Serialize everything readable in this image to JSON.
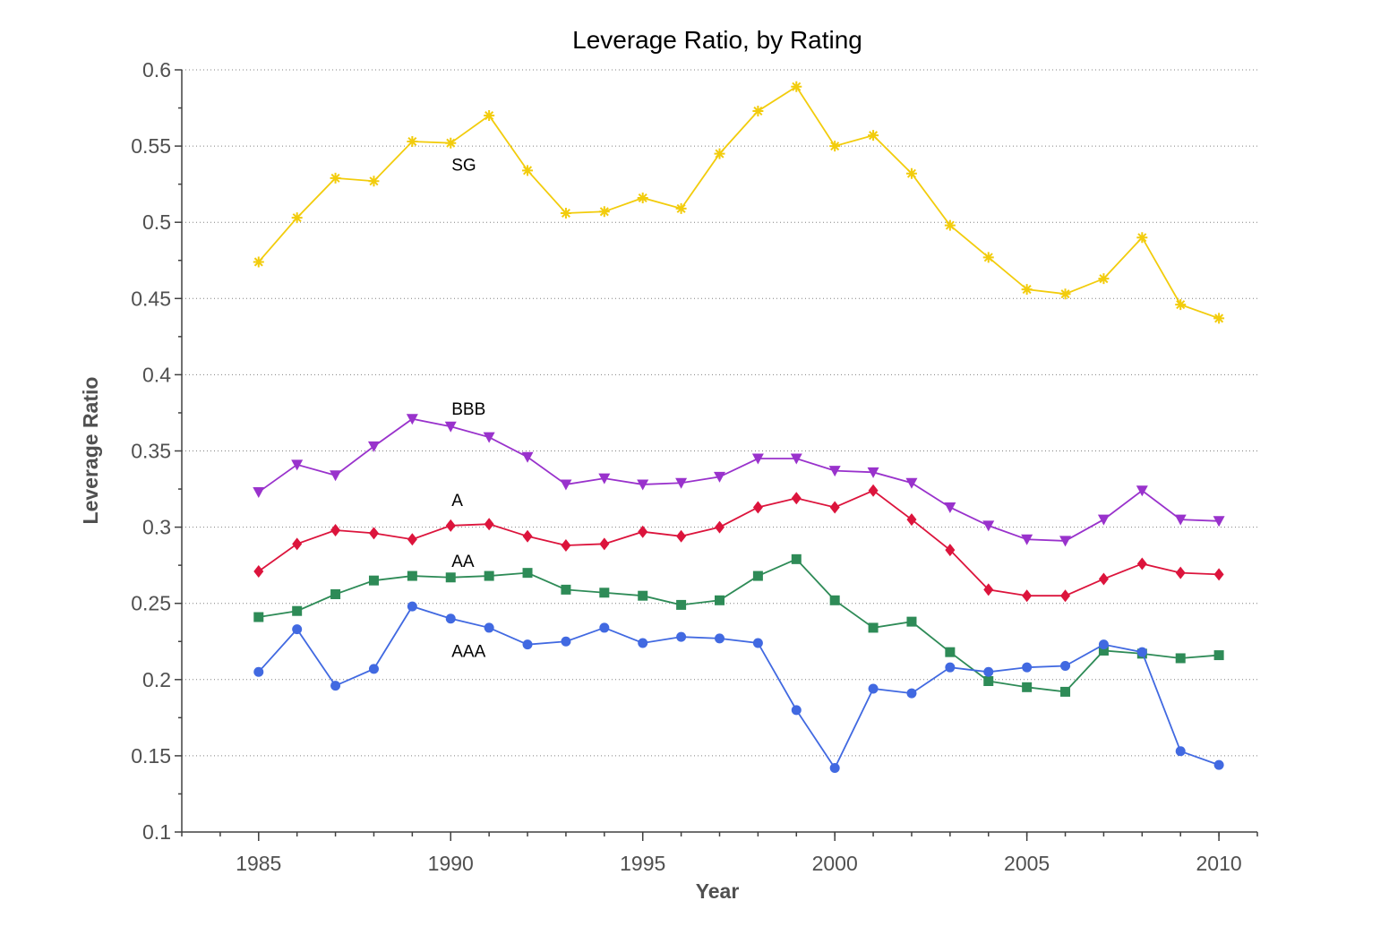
{
  "chart_data": {
    "type": "line",
    "title": "Leverage Ratio, by Rating",
    "xlabel": "Year",
    "ylabel": "Leverage Ratio",
    "xlim": [
      1983,
      2011
    ],
    "ylim": [
      0.1,
      0.6
    ],
    "xticks": [
      "1985",
      "1990",
      "1995",
      "2000",
      "2005",
      "2010"
    ],
    "yticks": [
      "0.1",
      "0.15",
      "0.2",
      "0.25",
      "0.3",
      "0.35",
      "0.4",
      "0.45",
      "0.5",
      "0.55",
      "0.6"
    ],
    "grid": "horizontal dotted",
    "legend": "none",
    "x": [
      1985,
      1986,
      1987,
      1988,
      1989,
      1990,
      1991,
      1992,
      1993,
      1994,
      1995,
      1996,
      1997,
      1998,
      1999,
      2000,
      2001,
      2002,
      2003,
      2004,
      2005,
      2006,
      2007,
      2008,
      2009,
      2010
    ],
    "series": [
      {
        "name": "SG",
        "color": "#f2cc0c",
        "marker": "asterisk",
        "label_at": [
          1990,
          0.538
        ],
        "values": [
          0.474,
          0.503,
          0.529,
          0.527,
          0.553,
          0.552,
          0.57,
          0.534,
          0.506,
          0.507,
          0.516,
          0.509,
          0.545,
          0.573,
          0.589,
          0.55,
          0.557,
          0.532,
          0.498,
          0.477,
          0.456,
          0.453,
          0.463,
          0.49,
          0.446,
          0.437
        ]
      },
      {
        "name": "BBB",
        "color": "#9932cc",
        "marker": "triangle-down",
        "label_at": [
          1990,
          0.378
        ],
        "values": [
          0.323,
          0.341,
          0.334,
          0.353,
          0.371,
          0.366,
          0.359,
          0.346,
          0.328,
          0.332,
          0.328,
          0.329,
          0.333,
          0.345,
          0.345,
          0.337,
          0.336,
          0.329,
          0.313,
          0.301,
          0.292,
          0.291,
          0.305,
          0.324,
          0.305,
          0.304
        ]
      },
      {
        "name": "A",
        "color": "#dc143c",
        "marker": "diamond",
        "label_at": [
          1990,
          0.318
        ],
        "values": [
          0.271,
          0.289,
          0.298,
          0.296,
          0.292,
          0.301,
          0.302,
          0.294,
          0.288,
          0.289,
          0.297,
          0.294,
          0.3,
          0.313,
          0.319,
          0.313,
          0.324,
          0.305,
          0.285,
          0.259,
          0.255,
          0.255,
          0.266,
          0.276,
          0.27,
          0.269
        ]
      },
      {
        "name": "AA",
        "color": "#2e8b57",
        "marker": "square",
        "label_at": [
          1990,
          0.278
        ],
        "values": [
          0.241,
          0.245,
          0.256,
          0.265,
          0.268,
          0.267,
          0.268,
          0.27,
          0.259,
          0.257,
          0.255,
          0.249,
          0.252,
          0.268,
          0.279,
          0.252,
          0.234,
          0.238,
          0.218,
          0.199,
          0.195,
          0.192,
          0.219,
          0.217,
          0.214,
          0.216
        ]
      },
      {
        "name": "AAA",
        "color": "#4169e1",
        "marker": "circle",
        "label_at": [
          1990,
          0.219
        ],
        "values": [
          0.205,
          0.233,
          0.196,
          0.207,
          0.248,
          0.24,
          0.234,
          0.223,
          0.225,
          0.234,
          0.224,
          0.228,
          0.227,
          0.224,
          0.18,
          0.142,
          0.194,
          0.191,
          0.208,
          0.205,
          0.208,
          0.209,
          0.223,
          0.218,
          0.153,
          0.144
        ]
      }
    ]
  }
}
